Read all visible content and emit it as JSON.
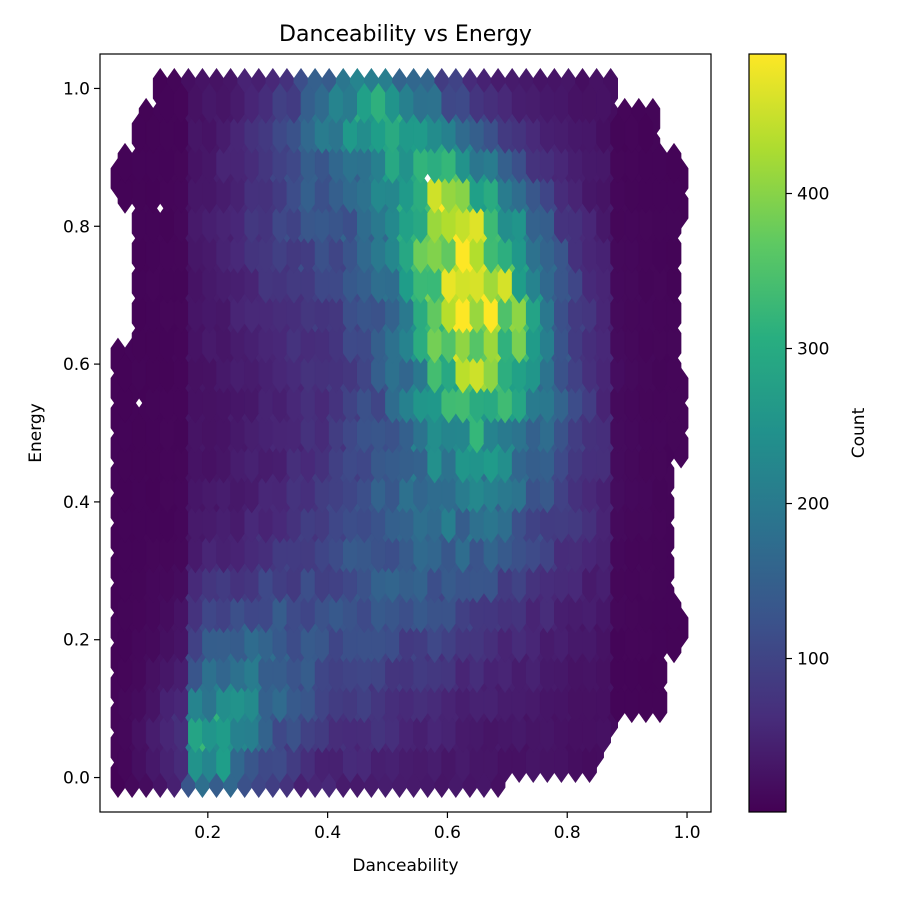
{
  "chart_data": {
    "type": "hexbin",
    "title": "Danceability vs Energy",
    "xlabel": "Danceability",
    "ylabel": "Energy",
    "xlim": [
      0.02,
      1.04
    ],
    "ylim": [
      -0.05,
      1.05
    ],
    "x_ticks": [
      0.2,
      0.4,
      0.6,
      0.8,
      1.0
    ],
    "x_tick_labels": [
      "0.2",
      "0.4",
      "0.6",
      "0.8",
      "1.0"
    ],
    "y_ticks": [
      0.0,
      0.2,
      0.4,
      0.6,
      0.8,
      1.0
    ],
    "y_tick_labels": [
      "0.0",
      "0.2",
      "0.4",
      "0.6",
      "0.8",
      "1.0"
    ],
    "grid": false,
    "colormap": "viridis",
    "colorbar": {
      "label": "Count",
      "min": 1,
      "max": 490,
      "ticks": [
        100,
        200,
        300,
        400
      ],
      "tick_labels": [
        "100",
        "200",
        "300",
        "400"
      ]
    },
    "density_clusters": [
      {
        "description_ref": "main",
        "x": 0.66,
        "y": 0.7,
        "peak_count": 480
      },
      {
        "description_ref": "secondary",
        "x": 0.57,
        "y": 0.86,
        "peak_count": 470
      },
      {
        "description_ref": "low-energy",
        "x": 0.19,
        "y": 0.04,
        "peak_count": 310
      }
    ],
    "hex_gridsize": 40,
    "data_x_range": [
      0.05,
      0.99
    ],
    "data_y_range": [
      0.0,
      1.0
    ]
  }
}
